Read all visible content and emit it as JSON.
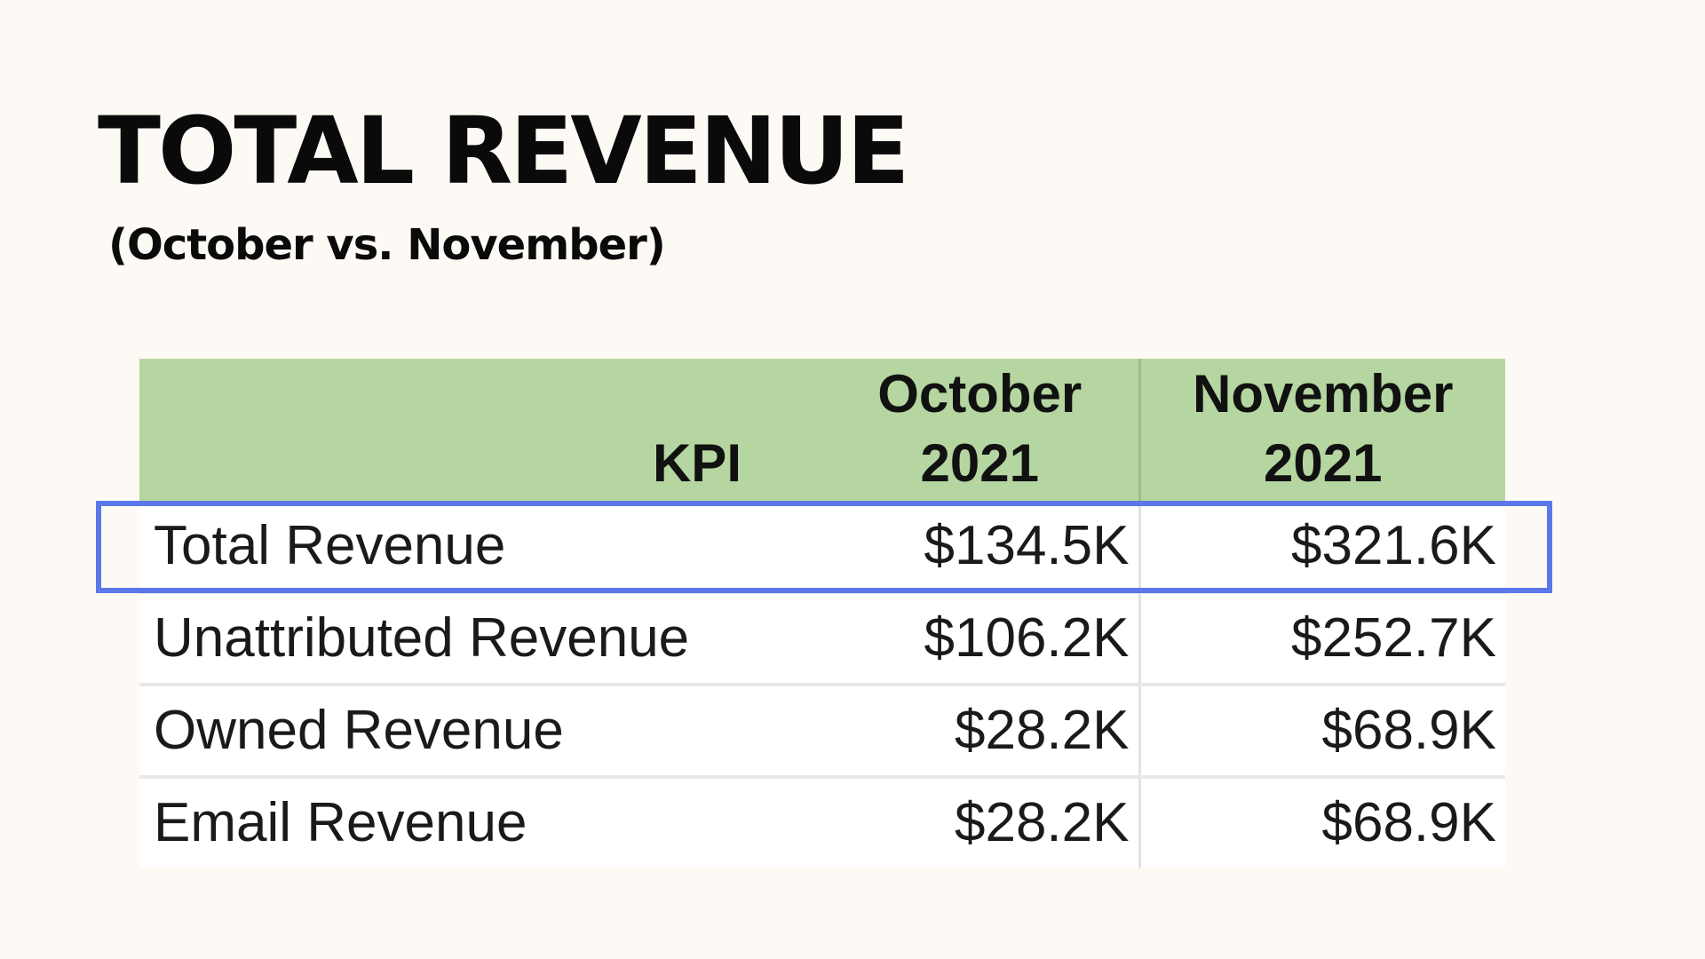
{
  "header": {
    "title": "TOTAL REVENUE",
    "subtitle": "(October vs. November)"
  },
  "table": {
    "columns": {
      "kpi": "KPI",
      "october": [
        "October",
        "2021"
      ],
      "november": [
        "November",
        "2021"
      ]
    },
    "rows": [
      {
        "kpi": "Total Revenue",
        "october": "$134.5K",
        "november": "$321.6K"
      },
      {
        "kpi": "Unattributed Revenue",
        "october": "$106.2K",
        "november": "$252.7K"
      },
      {
        "kpi": "Owned Revenue",
        "october": "$28.2K",
        "november": "$68.9K"
      },
      {
        "kpi": "Email Revenue",
        "october": "$28.2K",
        "november": "$68.9K"
      }
    ]
  },
  "highlight": {
    "row": "Total Revenue",
    "color": "#5b77e8"
  },
  "colors": {
    "header_fill": "#b5d6a0",
    "background": "#fdfaf5"
  }
}
